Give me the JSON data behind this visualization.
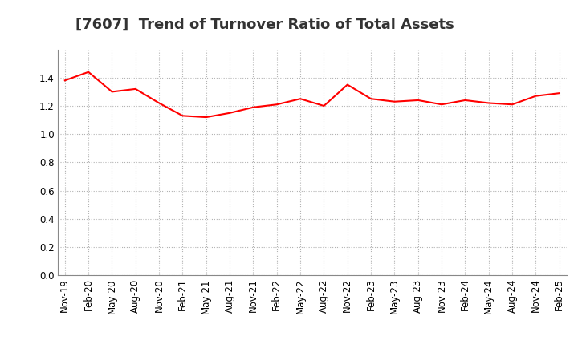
{
  "title": "[7607]  Trend of Turnover Ratio of Total Assets",
  "x_labels": [
    "Nov-19",
    "Feb-20",
    "May-20",
    "Aug-20",
    "Nov-20",
    "Feb-21",
    "May-21",
    "Aug-21",
    "Nov-21",
    "Feb-22",
    "May-22",
    "Aug-22",
    "Nov-22",
    "Feb-23",
    "May-23",
    "Aug-23",
    "Nov-23",
    "Feb-24",
    "May-24",
    "Aug-24",
    "Nov-24",
    "Feb-25"
  ],
  "y_values": [
    1.38,
    1.44,
    1.3,
    1.32,
    1.22,
    1.13,
    1.12,
    1.15,
    1.19,
    1.21,
    1.25,
    1.2,
    1.35,
    1.25,
    1.23,
    1.24,
    1.21,
    1.24,
    1.22,
    1.21,
    1.27,
    1.29
  ],
  "line_color": "#ff0000",
  "line_width": 1.5,
  "ylim": [
    0.0,
    1.6
  ],
  "yticks": [
    0.0,
    0.2,
    0.4,
    0.6,
    0.8,
    1.0,
    1.2,
    1.4
  ],
  "grid_color": "#aaaaaa",
  "grid_style": "dotted",
  "background_color": "#ffffff",
  "title_fontsize": 13,
  "tick_fontsize": 8.5,
  "title_color": "#333333"
}
